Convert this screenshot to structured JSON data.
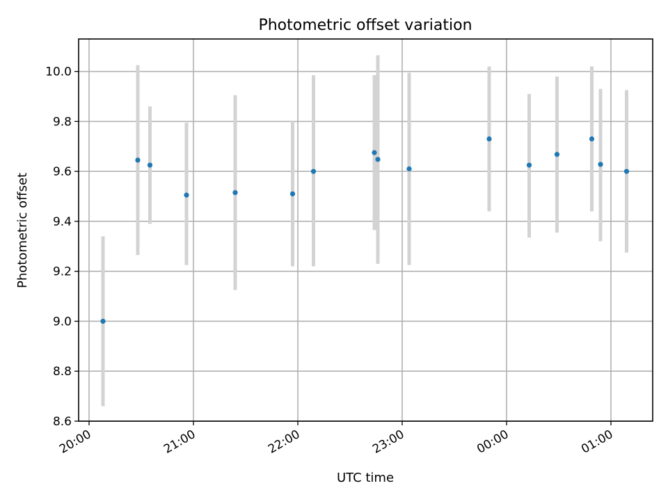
{
  "chart_data": {
    "type": "scatter",
    "title": "Photometric offset variation",
    "xlabel": "UTC time",
    "ylabel": "Photometric offset",
    "grid": true,
    "legend": "none",
    "xlim": [
      "19:54",
      "01:24"
    ],
    "ylim": [
      8.6,
      10.13
    ],
    "x_ticks": [
      "20:00",
      "21:00",
      "22:00",
      "23:00",
      "00:00",
      "01:00"
    ],
    "y_ticks": [
      "8.6",
      "8.8",
      "9.0",
      "9.2",
      "9.4",
      "9.6",
      "9.8",
      "10.0"
    ],
    "series": [
      {
        "marker_color": "#1f77b4",
        "errorbar_color": "#d3d3d3",
        "points": [
          {
            "x": "20:08",
            "y": 9.0,
            "yerr_low": 8.66,
            "yerr_high": 9.34
          },
          {
            "x": "20:28",
            "y": 9.645,
            "yerr_low": 9.265,
            "yerr_high": 10.025
          },
          {
            "x": "20:35",
            "y": 9.625,
            "yerr_low": 9.39,
            "yerr_high": 9.86
          },
          {
            "x": "20:56",
            "y": 9.505,
            "yerr_low": 9.225,
            "yerr_high": 9.795
          },
          {
            "x": "21:24",
            "y": 9.515,
            "yerr_low": 9.125,
            "yerr_high": 9.905
          },
          {
            "x": "21:57",
            "y": 9.51,
            "yerr_low": 9.22,
            "yerr_high": 9.8
          },
          {
            "x": "22:09",
            "y": 9.6,
            "yerr_low": 9.22,
            "yerr_high": 9.985
          },
          {
            "x": "22:44",
            "y": 9.675,
            "yerr_low": 9.365,
            "yerr_high": 9.985
          },
          {
            "x": "22:46",
            "y": 9.648,
            "yerr_low": 9.23,
            "yerr_high": 10.065
          },
          {
            "x": "23:04",
            "y": 9.61,
            "yerr_low": 9.225,
            "yerr_high": 9.995
          },
          {
            "x": "23:50",
            "y": 9.73,
            "yerr_low": 9.44,
            "yerr_high": 10.02
          },
          {
            "x": "00:13",
            "y": 9.625,
            "yerr_low": 9.335,
            "yerr_high": 9.91
          },
          {
            "x": "00:29",
            "y": 9.668,
            "yerr_low": 9.355,
            "yerr_high": 9.98
          },
          {
            "x": "00:49",
            "y": 9.73,
            "yerr_low": 9.44,
            "yerr_high": 10.02
          },
          {
            "x": "00:54",
            "y": 9.628,
            "yerr_low": 9.32,
            "yerr_high": 9.93
          },
          {
            "x": "01:09",
            "y": 9.6,
            "yerr_low": 9.275,
            "yerr_high": 9.925
          }
        ]
      }
    ]
  }
}
